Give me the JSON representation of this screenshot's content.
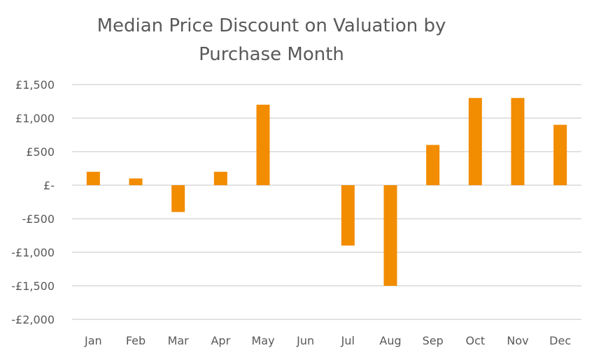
{
  "chart_data": {
    "type": "bar",
    "title_lines": [
      "Median Price Discount on Valuation by",
      "Purchase Month"
    ],
    "categories": [
      "Jan",
      "Feb",
      "Mar",
      "Apr",
      "May",
      "Jun",
      "Jul",
      "Aug",
      "Sep",
      "Oct",
      "Nov",
      "Dec"
    ],
    "values": [
      200,
      100,
      -400,
      200,
      1200,
      0,
      -900,
      -1500,
      600,
      1300,
      1300,
      900
    ],
    "ylim": [
      -2000,
      1500
    ],
    "yticks": [
      1500,
      1000,
      500,
      0,
      -500,
      -1000,
      -1500,
      -2000
    ],
    "ytick_labels": [
      "£1,500",
      "£1,000",
      "£500",
      "£-",
      "-£500",
      "-£1,000",
      "-£1,500",
      "-£2,000"
    ],
    "grid": true,
    "legend": "none",
    "colors": {
      "bar": "#F28C00",
      "grid": "#D9D9D9",
      "text": "#595959"
    }
  }
}
